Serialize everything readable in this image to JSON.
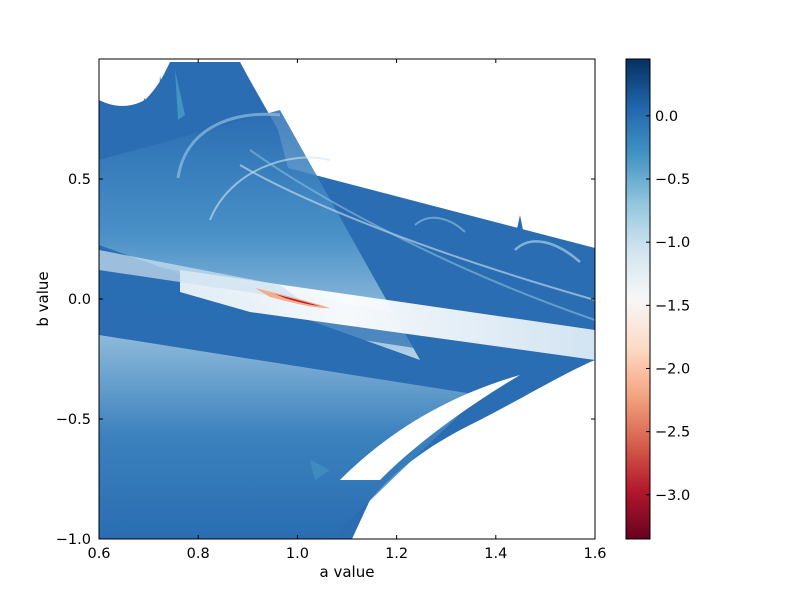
{
  "chart_data": {
    "type": "heatmap",
    "title": "",
    "xlabel": "a value",
    "ylabel": "b value",
    "xlim": [
      0.6,
      1.6
    ],
    "ylim": [
      -1.0,
      1.0
    ],
    "x_ticks": [
      0.6,
      0.8,
      1.0,
      1.2,
      1.4,
      1.6
    ],
    "x_tick_labels": [
      "0.6",
      "0.8",
      "1.0",
      "1.2",
      "1.4",
      "1.6"
    ],
    "y_ticks": [
      -1.0,
      -0.5,
      0.0,
      0.5
    ],
    "y_tick_labels": [
      "−1.0",
      "−0.5",
      "0.0",
      "0.5"
    ],
    "colorbar": {
      "colormap": "RdBu",
      "range": [
        -3.35,
        0.45
      ],
      "ticks": [
        0.0,
        -0.5,
        -1.0,
        -1.5,
        -2.0,
        -2.5,
        -3.0
      ],
      "tick_labels": [
        "0.0",
        "−0.5",
        "−1.0",
        "−1.5",
        "−2.0",
        "−2.5",
        "−3.0"
      ],
      "stops": [
        "#67001f",
        "#b2182b",
        "#d6604d",
        "#f4a582",
        "#fddbc7",
        "#f7f7f7",
        "#d1e5f0",
        "#92c5de",
        "#4393c3",
        "#2166ac",
        "#053061"
      ]
    },
    "missing_color": "#ffffff",
    "dominant_color": "#2a6db2",
    "min_value_location": {
      "a": 1.0,
      "b": -0.02,
      "value": -3.3
    }
  }
}
